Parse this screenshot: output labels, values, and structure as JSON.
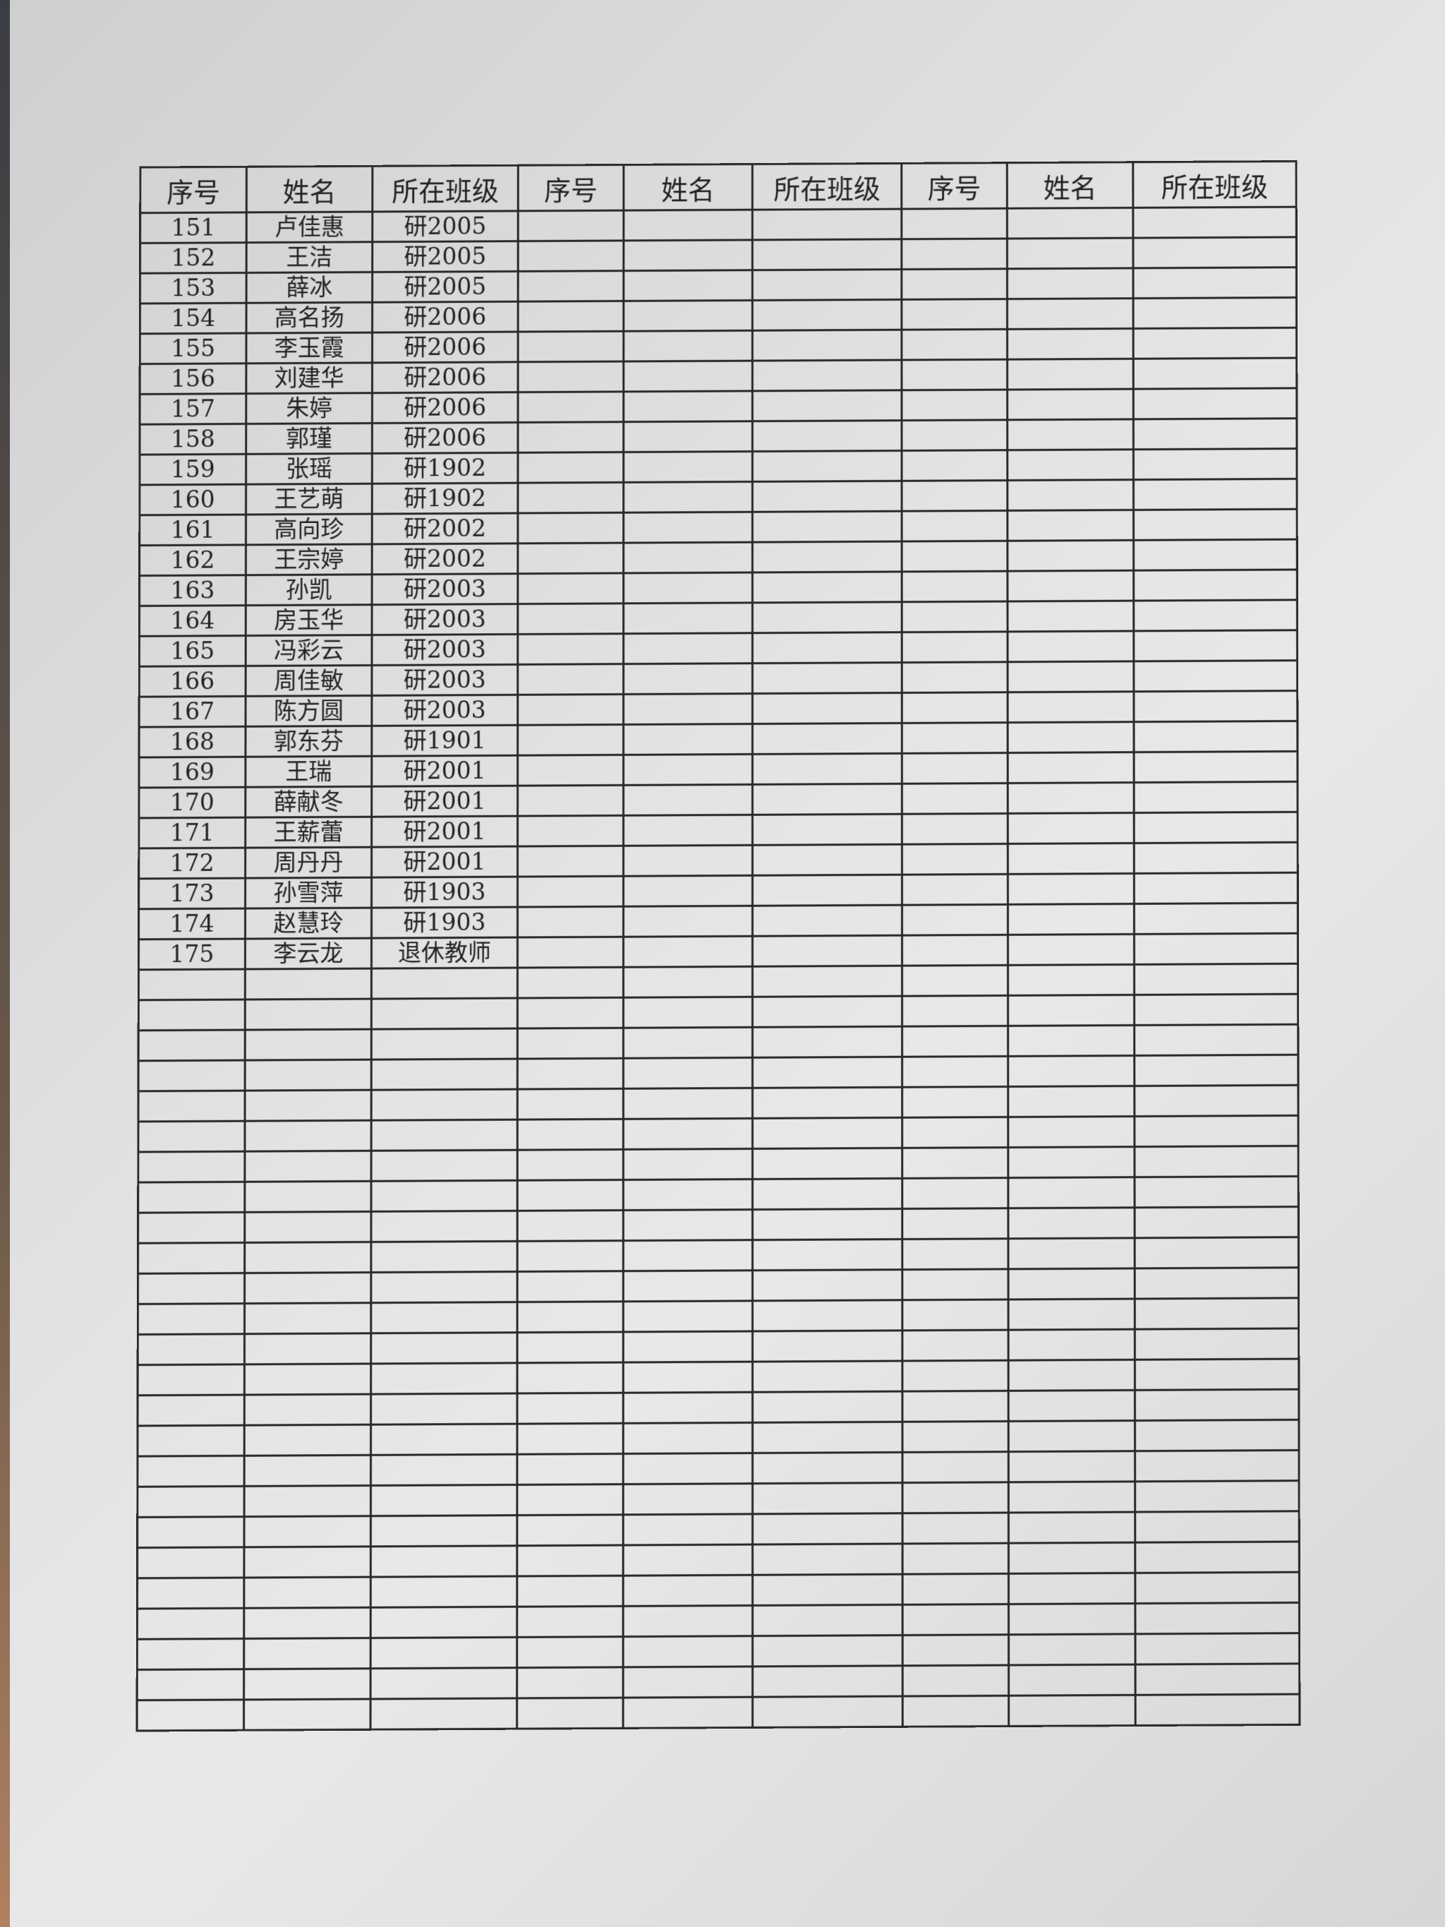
{
  "headers": [
    "序号",
    "姓名",
    "所在班级",
    "序号",
    "姓名",
    "所在班级",
    "序号",
    "姓名",
    "所在班级"
  ],
  "rows": [
    [
      "151",
      "卢佳惠",
      "研2005"
    ],
    [
      "152",
      "王洁",
      "研2005"
    ],
    [
      "153",
      "薛冰",
      "研2005"
    ],
    [
      "154",
      "高名扬",
      "研2006"
    ],
    [
      "155",
      "李玉霞",
      "研2006"
    ],
    [
      "156",
      "刘建华",
      "研2006"
    ],
    [
      "157",
      "朱婷",
      "研2006"
    ],
    [
      "158",
      "郭瑾",
      "研2006"
    ],
    [
      "159",
      "张瑶",
      "研1902"
    ],
    [
      "160",
      "王艺萌",
      "研1902"
    ],
    [
      "161",
      "高向珍",
      "研2002"
    ],
    [
      "162",
      "王宗婷",
      "研2002"
    ],
    [
      "163",
      "孙凯",
      "研2003"
    ],
    [
      "164",
      "房玉华",
      "研2003"
    ],
    [
      "165",
      "冯彩云",
      "研2003"
    ],
    [
      "166",
      "周佳敏",
      "研2003"
    ],
    [
      "167",
      "陈方圆",
      "研2003"
    ],
    [
      "168",
      "郭东芬",
      "研1901"
    ],
    [
      "169",
      "王瑞",
      "研2001"
    ],
    [
      "170",
      "薛献冬",
      "研2001"
    ],
    [
      "171",
      "王薪蕾",
      "研2001"
    ],
    [
      "172",
      "周丹丹",
      "研2001"
    ],
    [
      "173",
      "孙雪萍",
      "研1903"
    ],
    [
      "174",
      "赵慧玲",
      "研1903"
    ],
    [
      "175",
      "李云龙",
      "退休教师"
    ]
  ],
  "total_rows": 50
}
